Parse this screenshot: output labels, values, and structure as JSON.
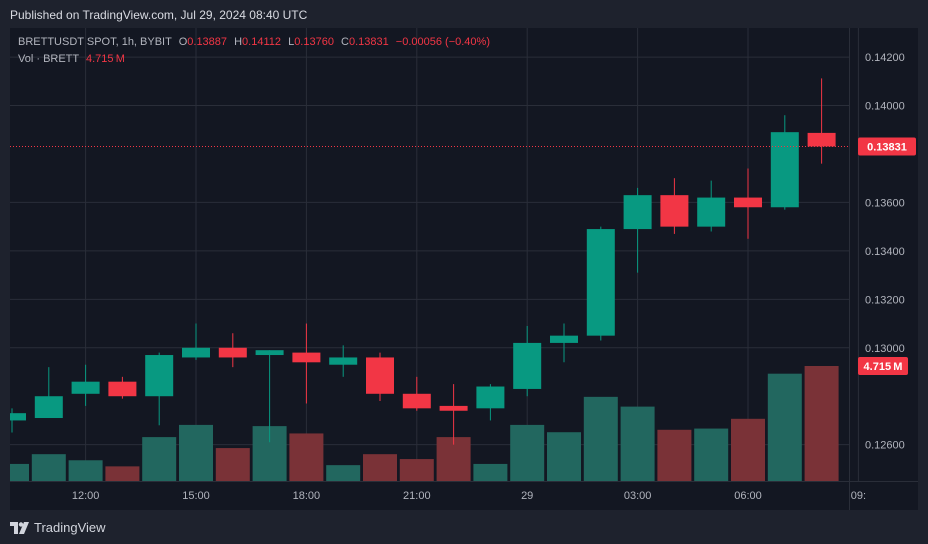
{
  "header": {
    "published": "Published on TradingView.com, Jul 29, 2024 08:40 UTC"
  },
  "legend": {
    "symbol": "BRETTUSDT SPOT, 1h, BYBIT",
    "o_label": "O",
    "o_value": "0.13887",
    "h_label": "H",
    "h_value": "0.14112",
    "l_label": "L",
    "l_value": "0.13760",
    "c_label": "C",
    "c_value": "0.13831",
    "change": "−0.00056 (−0.40%)",
    "vol_label": "Vol · BRETT",
    "vol_value": "4.715 M"
  },
  "footer": {
    "brand": "TradingView"
  },
  "colors": {
    "up": "#089981",
    "down": "#f23645",
    "up_vol": "#22675f",
    "down_vol": "#7a3237",
    "bg": "#131722"
  },
  "chart_data": {
    "type": "candlestick",
    "interval": "1h",
    "y_ticks": [
      "0.14200",
      "0.14000",
      "0.13600",
      "0.13400",
      "0.13200",
      "0.13000",
      "0.12600"
    ],
    "ylim": [
      0.1245,
      0.1432
    ],
    "x_ticks": [
      {
        "label": "12:00",
        "index": 2
      },
      {
        "label": "15:00",
        "index": 5
      },
      {
        "label": "18:00",
        "index": 8
      },
      {
        "label": "21:00",
        "index": 11
      },
      {
        "label": "29",
        "index": 14
      },
      {
        "label": "03:00",
        "index": 17
      },
      {
        "label": "06:00",
        "index": 20
      },
      {
        "label": "09:",
        "index": 23
      }
    ],
    "last_price": "0.13831",
    "last_volume": "4.715 M",
    "candles": [
      {
        "o": 0.127,
        "h": 0.1275,
        "l": 0.1265,
        "c": 0.1273,
        "v": 0.7
      },
      {
        "o": 0.1271,
        "h": 0.1292,
        "l": 0.1271,
        "c": 0.128,
        "v": 1.1
      },
      {
        "o": 0.1281,
        "h": 0.1293,
        "l": 0.1276,
        "c": 0.1286,
        "v": 0.85
      },
      {
        "o": 0.1286,
        "h": 0.1288,
        "l": 0.1279,
        "c": 0.128,
        "v": 0.6
      },
      {
        "o": 0.128,
        "h": 0.1298,
        "l": 0.1268,
        "c": 0.1297,
        "v": 1.8
      },
      {
        "o": 0.1296,
        "h": 0.131,
        "l": 0.1295,
        "c": 0.13,
        "v": 2.3
      },
      {
        "o": 0.13,
        "h": 0.1306,
        "l": 0.1292,
        "c": 0.1296,
        "v": 1.35
      },
      {
        "o": 0.1297,
        "h": 0.1299,
        "l": 0.1261,
        "c": 0.1299,
        "v": 2.25
      },
      {
        "o": 0.1298,
        "h": 0.131,
        "l": 0.1277,
        "c": 0.1294,
        "v": 1.95
      },
      {
        "o": 0.1293,
        "h": 0.1301,
        "l": 0.1288,
        "c": 0.1296,
        "v": 0.65
      },
      {
        "o": 0.1296,
        "h": 0.1298,
        "l": 0.1278,
        "c": 0.1281,
        "v": 1.1
      },
      {
        "o": 0.1281,
        "h": 0.1288,
        "l": 0.1274,
        "c": 0.1275,
        "v": 0.9
      },
      {
        "o": 0.1276,
        "h": 0.1285,
        "l": 0.126,
        "c": 0.1274,
        "v": 1.8
      },
      {
        "o": 0.1275,
        "h": 0.1285,
        "l": 0.127,
        "c": 0.1284,
        "v": 0.7
      },
      {
        "o": 0.1283,
        "h": 0.1309,
        "l": 0.128,
        "c": 0.1302,
        "v": 2.3
      },
      {
        "o": 0.1302,
        "h": 0.131,
        "l": 0.1294,
        "c": 0.1305,
        "v": 2.0
      },
      {
        "o": 0.1305,
        "h": 0.135,
        "l": 0.1303,
        "c": 0.1349,
        "v": 3.45
      },
      {
        "o": 0.1349,
        "h": 0.1366,
        "l": 0.1331,
        "c": 0.1363,
        "v": 3.05
      },
      {
        "o": 0.1363,
        "h": 0.137,
        "l": 0.1347,
        "c": 0.135,
        "v": 2.1
      },
      {
        "o": 0.135,
        "h": 0.1369,
        "l": 0.1348,
        "c": 0.1362,
        "v": 2.15
      },
      {
        "o": 0.1362,
        "h": 0.1374,
        "l": 0.1345,
        "c": 0.1358,
        "v": 2.55
      },
      {
        "o": 0.1358,
        "h": 0.1396,
        "l": 0.1357,
        "c": 0.1389,
        "v": 4.4
      },
      {
        "o": 0.13887,
        "h": 0.14112,
        "l": 0.1376,
        "c": 0.13831,
        "v": 4.715
      }
    ]
  }
}
